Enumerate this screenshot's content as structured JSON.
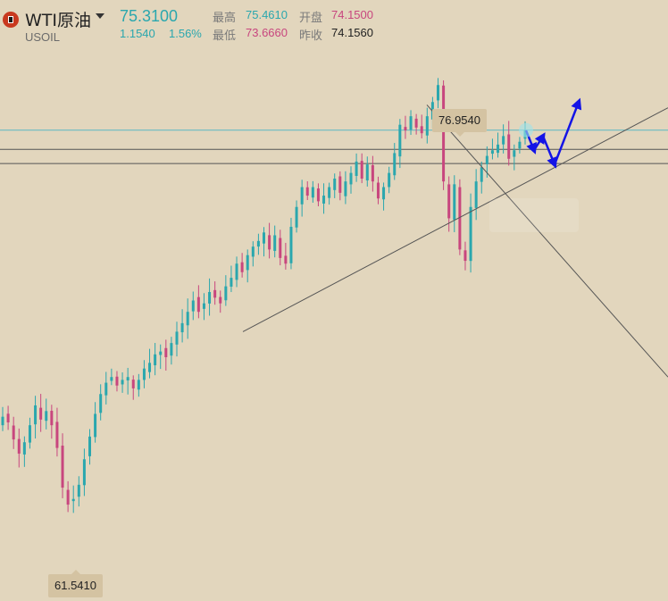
{
  "header": {
    "title": "WTI原油",
    "code": "USOIL",
    "price": "75.3100",
    "change": "1.1540",
    "change_pct": "1.56%",
    "high_label": "最高",
    "high_value": "75.4610",
    "low_label": "最低",
    "low_value": "73.6660",
    "open_label": "开盘",
    "open_value": "74.1500",
    "prev_close_label": "昨收",
    "prev_close_value": "74.1560"
  },
  "colors": {
    "background": "#e2d6bd",
    "up": "#2aa7ae",
    "down": "#c8467e",
    "accent_price": "#2aa7ae",
    "trendline": "#555555",
    "forecast_arrow": "#1414e6",
    "price_line": "#5bb7c4"
  },
  "chart_data": {
    "type": "candlestick",
    "title": "",
    "xlabel": "",
    "ylabel": "",
    "ylim": [
      58.7,
      79.9
    ],
    "high_marker": "76.9540",
    "low_marker": "61.5410",
    "current_price": 75.31,
    "horizontal_levels": [
      74.63,
      74.13
    ],
    "trendlines": [
      {
        "name": "support",
        "from": [
          68.2,
          "rising"
        ],
        "to": [
          76.1,
          "rising"
        ]
      },
      {
        "name": "descending",
        "from": [
          76.2,
          "falling"
        ],
        "to": [
          66.6,
          "falling"
        ]
      }
    ],
    "closes": [
      65.2,
      65.0,
      64.4,
      63.9,
      64.3,
      64.9,
      65.6,
      65.1,
      65.4,
      64.9,
      64.1,
      62.7,
      62.1,
      62.3,
      62.8,
      63.7,
      64.5,
      65.3,
      66.0,
      66.4,
      66.6,
      66.3,
      66.5,
      66.6,
      66.2,
      66.5,
      66.9,
      67.1,
      67.4,
      67.5,
      67.3,
      67.8,
      68.2,
      68.5,
      68.9,
      69.3,
      68.9,
      69.2,
      69.6,
      69.4,
      69.2,
      69.8,
      70.1,
      70.6,
      70.3,
      70.9,
      71.2,
      71.4,
      71.7,
      71.1,
      71.6,
      70.8,
      70.6,
      71.9,
      72.6,
      73.3,
      73.0,
      73.3,
      72.8,
      73.0,
      73.3,
      73.6,
      73.1,
      73.5,
      73.8,
      74.2,
      73.6,
      74.1,
      73.5,
      72.9,
      73.3,
      73.8,
      74.5,
      75.5,
      75.3,
      75.8,
      75.4,
      75.2,
      75.8,
      76.3,
      76.9,
      73.5,
      72.2,
      73.4,
      71.1,
      70.7,
      72.6,
      73.5,
      74.0,
      74.4,
      74.6,
      74.8,
      75.1,
      74.3,
      74.6,
      74.9,
      75.3
    ],
    "forecast_path": [
      "75.3",
      "74.6",
      "75.1",
      "74.1",
      "76.3"
    ]
  }
}
